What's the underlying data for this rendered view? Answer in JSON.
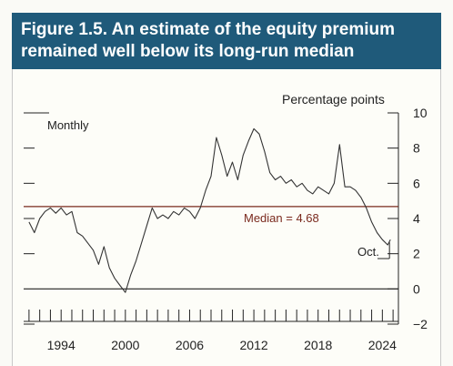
{
  "figure": {
    "title_line1": "Figure 1.5. An estimate of the equity premium",
    "title_line2": "remained well below its long-run median"
  },
  "colors": {
    "title_bg": "#1f5a7a",
    "series": "#333333",
    "median_line": "#7a2a1e",
    "zero_line": "#222222"
  },
  "chart_data": {
    "type": "line",
    "title": "",
    "ylabel": "Percentage points",
    "frequency_note": "Monthly",
    "ylim": [
      -2,
      10
    ],
    "yticks": [
      -2,
      0,
      2,
      4,
      6,
      8,
      10
    ],
    "xlim": [
      1990.5,
      2025.5
    ],
    "xtick_labels": [
      "1994",
      "2000",
      "2006",
      "2012",
      "2018",
      "2024"
    ],
    "xtick_values": [
      1994,
      2000,
      2006,
      2012,
      2018,
      2024
    ],
    "median": {
      "value": 4.68,
      "label": "Median = 4.68"
    },
    "end_annotation": "Oct.",
    "series": [
      {
        "x": [
          1991.0,
          1991.5,
          1992.0,
          1992.5,
          1993.0,
          1993.5,
          1994.0,
          1994.5,
          1995.0,
          1995.5,
          1996.0,
          1996.5,
          1997.0,
          1997.5,
          1998.0,
          1998.5,
          1999.0,
          1999.5,
          2000.0,
          2000.5,
          2001.0,
          2001.5,
          2002.0,
          2002.5,
          2003.0,
          2003.5,
          2004.0,
          2004.5,
          2005.0,
          2005.5,
          2006.0,
          2006.5,
          2007.0,
          2007.5,
          2008.0,
          2008.5,
          2009.0,
          2009.5,
          2010.0,
          2010.5,
          2011.0,
          2011.5,
          2012.0,
          2012.5,
          2013.0,
          2013.5,
          2014.0,
          2014.5,
          2015.0,
          2015.5,
          2016.0,
          2016.5,
          2017.0,
          2017.5,
          2018.0,
          2018.5,
          2019.0,
          2019.5,
          2020.0,
          2020.5,
          2021.0,
          2021.5,
          2022.0,
          2022.5,
          2023.0,
          2023.5,
          2024.0,
          2024.5,
          2024.75
        ],
        "y": [
          3.8,
          3.2,
          4.0,
          4.4,
          4.6,
          4.3,
          4.6,
          4.2,
          4.4,
          3.2,
          3.0,
          2.6,
          2.2,
          1.4,
          2.4,
          1.2,
          0.6,
          0.2,
          -0.2,
          0.8,
          1.6,
          2.6,
          3.6,
          4.6,
          4.0,
          4.2,
          4.0,
          4.4,
          4.2,
          4.6,
          4.4,
          4.0,
          4.6,
          5.6,
          6.4,
          8.6,
          7.6,
          6.4,
          7.2,
          6.2,
          7.6,
          8.4,
          9.1,
          8.8,
          7.8,
          6.6,
          6.2,
          6.4,
          6.0,
          6.2,
          5.8,
          6.0,
          5.6,
          5.4,
          5.8,
          5.6,
          5.4,
          6.0,
          8.2,
          5.8,
          5.8,
          5.6,
          5.2,
          4.6,
          3.8,
          3.2,
          2.8,
          2.5,
          2.8
        ]
      }
    ],
    "grid": false,
    "legend": "none"
  }
}
